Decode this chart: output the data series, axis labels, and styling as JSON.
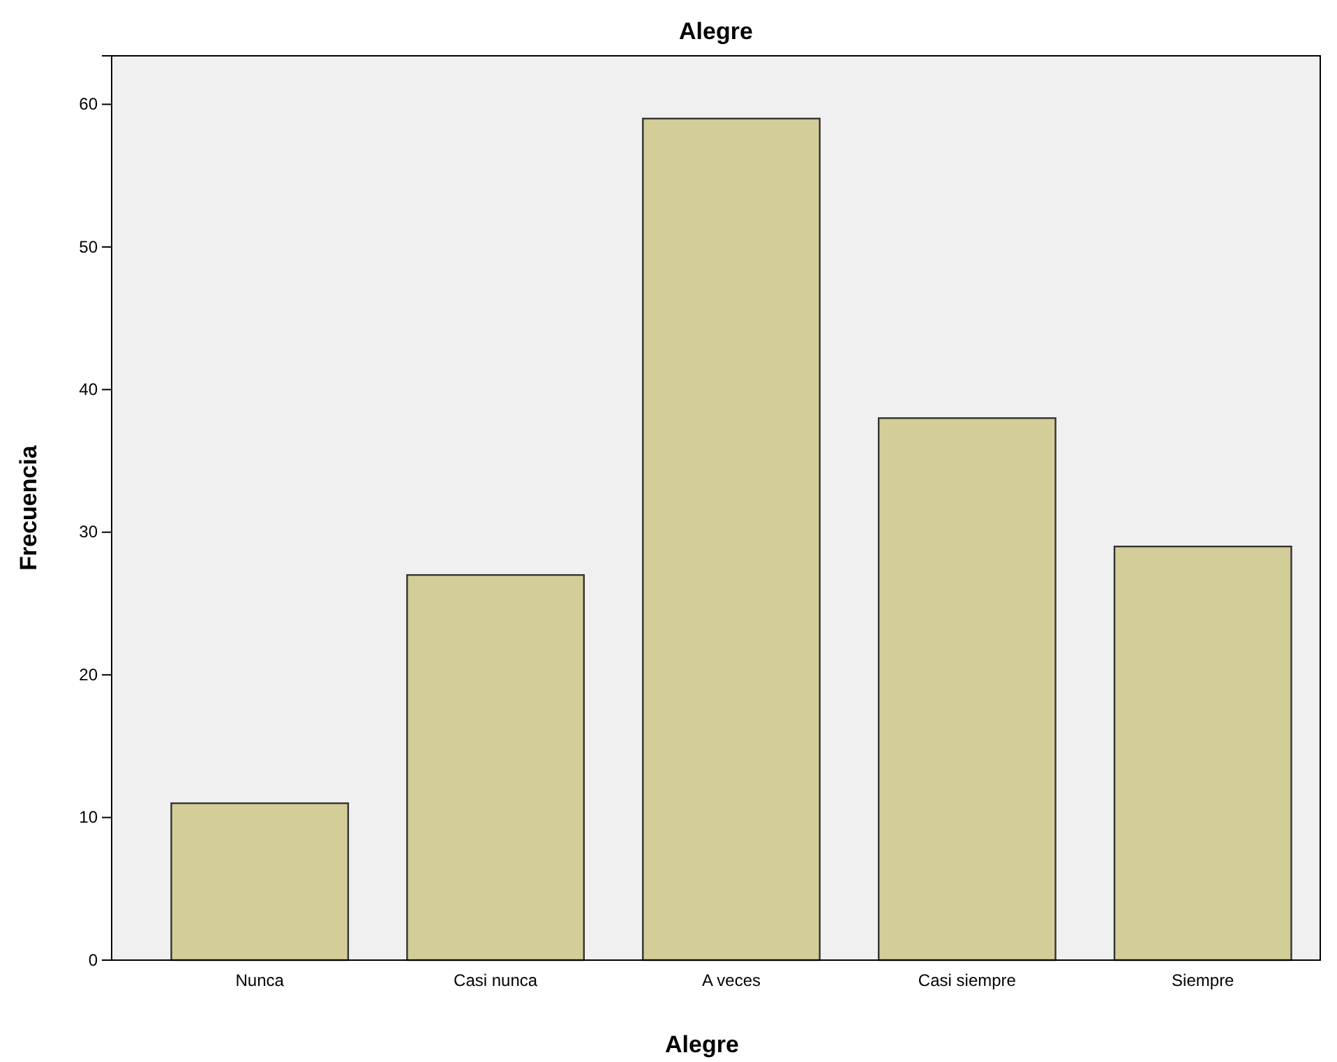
{
  "chart_data": {
    "type": "bar",
    "title": "Alegre",
    "xlabel": "Alegre",
    "ylabel": "Frecuencia",
    "categories": [
      "Nunca",
      "Casi nunca",
      "A veces",
      "Casi siempre",
      "Siempre"
    ],
    "values": [
      11,
      27,
      59,
      38,
      29
    ],
    "color": "#d3ce97",
    "ylim": [
      0,
      63.4
    ],
    "yticks": [
      0,
      10,
      20,
      30,
      40,
      50,
      60
    ],
    "grid": false
  }
}
